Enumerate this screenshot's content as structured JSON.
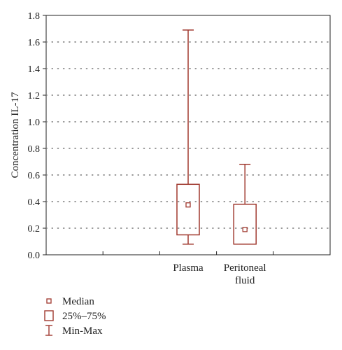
{
  "chart_data": {
    "type": "boxplot",
    "ylabel": "Concentration IL-17",
    "ylim": [
      0,
      1.8
    ],
    "yticks": [
      "0.0",
      "0.2",
      "0.4",
      "0.6",
      "0.8",
      "1.0",
      "1.2",
      "1.4",
      "1.6",
      "1.8"
    ],
    "grid": "horizontal-dotted",
    "categories": [
      {
        "label_lines": [
          "Plasma"
        ],
        "min": 0.08,
        "q1": 0.15,
        "median": 0.375,
        "q3": 0.53,
        "max": 1.69
      },
      {
        "label_lines": [
          "Peritoneal",
          "fluid"
        ],
        "min": 0.08,
        "q1": 0.08,
        "median": 0.19,
        "q3": 0.38,
        "max": 0.68
      }
    ],
    "legend": {
      "position": "bottom-left",
      "items": [
        {
          "symbol": "median",
          "label": "Median"
        },
        {
          "symbol": "box",
          "label": "25%–75%"
        },
        {
          "symbol": "whisker",
          "label": "Min-Max"
        }
      ]
    },
    "colors": {
      "series": "#a0392f",
      "axis": "#222222",
      "grid": "#777777"
    }
  }
}
